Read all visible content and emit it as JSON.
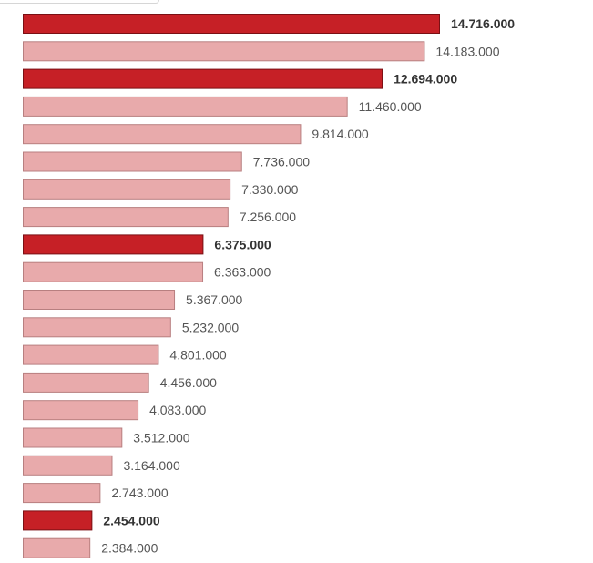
{
  "chart_data": {
    "type": "bar",
    "orientation": "horizontal",
    "title": "",
    "xlabel": "",
    "ylabel": "",
    "grid": false,
    "xlim": [
      0,
      14716000
    ],
    "colors": {
      "highlight_fill": "#c62026",
      "highlight_stroke": "#7a1014",
      "normal_fill": "#e8aaab",
      "normal_stroke": "#b87f80"
    },
    "bars": [
      {
        "value": 14716000,
        "label": "14.716.000",
        "highlight": true
      },
      {
        "value": 14183000,
        "label": "14.183.000",
        "highlight": false
      },
      {
        "value": 12694000,
        "label": "12.694.000",
        "highlight": true
      },
      {
        "value": 11460000,
        "label": "11.460.000",
        "highlight": false
      },
      {
        "value": 9814000,
        "label": "9.814.000",
        "highlight": false
      },
      {
        "value": 7736000,
        "label": "7.736.000",
        "highlight": false
      },
      {
        "value": 7330000,
        "label": "7.330.000",
        "highlight": false
      },
      {
        "value": 7256000,
        "label": "7.256.000",
        "highlight": false
      },
      {
        "value": 6375000,
        "label": "6.375.000",
        "highlight": true
      },
      {
        "value": 6363000,
        "label": "6.363.000",
        "highlight": false
      },
      {
        "value": 5367000,
        "label": "5.367.000",
        "highlight": false
      },
      {
        "value": 5232000,
        "label": "5.232.000",
        "highlight": false
      },
      {
        "value": 4801000,
        "label": "4.801.000",
        "highlight": false
      },
      {
        "value": 4456000,
        "label": "4.456.000",
        "highlight": false
      },
      {
        "value": 4083000,
        "label": "4.083.000",
        "highlight": false
      },
      {
        "value": 3512000,
        "label": "3.512.000",
        "highlight": false
      },
      {
        "value": 3164000,
        "label": "3.164.000",
        "highlight": false
      },
      {
        "value": 2743000,
        "label": "2.743.000",
        "highlight": false
      },
      {
        "value": 2454000,
        "label": "2.454.000",
        "highlight": true
      },
      {
        "value": 2384000,
        "label": "2.384.000",
        "highlight": false
      }
    ]
  }
}
